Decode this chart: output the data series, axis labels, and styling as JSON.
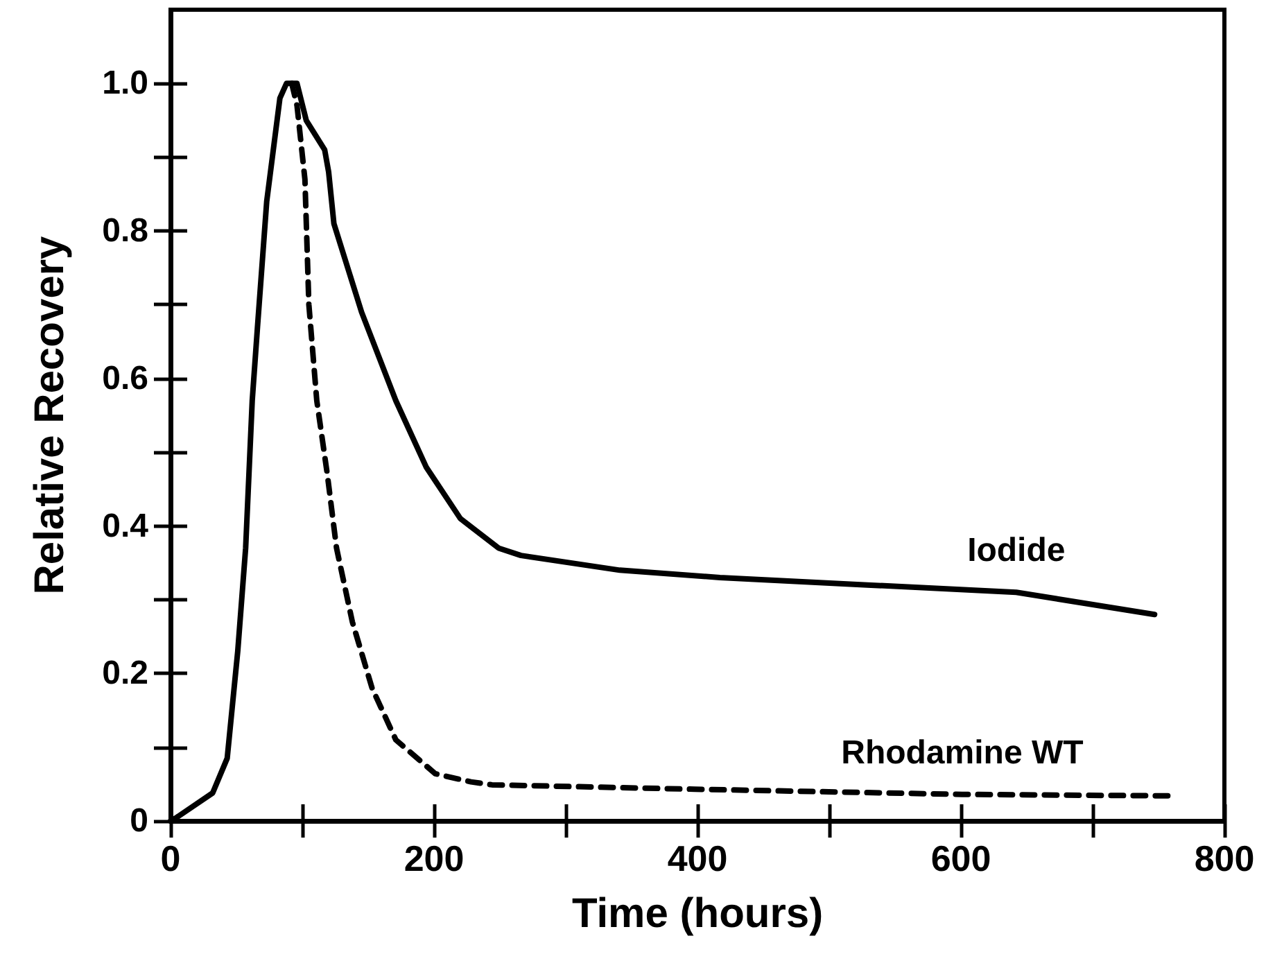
{
  "chart_data": {
    "type": "line",
    "xlabel": "Time (hours)",
    "ylabel": "Relative Recovery",
    "xlim": [
      0,
      800
    ],
    "ylim": [
      0,
      1.1
    ],
    "xticks": [
      0,
      {
        "value": 100,
        "label": null
      },
      200,
      {
        "value": 300,
        "label": null
      },
      400,
      {
        "value": 500,
        "label": null
      },
      600,
      {
        "value": 700,
        "label": null
      },
      800
    ],
    "yticks": [
      0,
      {
        "value": 0.1,
        "label": null
      },
      0.2,
      {
        "value": 0.3,
        "label": null
      },
      0.4,
      {
        "value": 0.5,
        "label": null
      },
      0.6,
      {
        "value": 0.7,
        "label": null
      },
      0.8,
      {
        "value": 0.9,
        "label": null
      },
      {
        "value": 1,
        "label": "1.0"
      }
    ],
    "grid": false,
    "legend": false,
    "marker": "none",
    "series": [
      {
        "name": "Iodide",
        "color": "#000000",
        "line_style": "solid",
        "x": [
          0,
          4,
          32,
          43,
          51,
          57,
          62,
          66,
          73,
          83,
          88,
          96,
          103,
          117,
          120,
          124,
          145,
          171,
          194,
          220,
          249,
          266,
          341,
          417,
          529,
          642,
          747
        ],
        "values": [
          0,
          0.004,
          0.038,
          0.085,
          0.23,
          0.37,
          0.57,
          0.67,
          0.84,
          0.98,
          1.0,
          1.0,
          0.95,
          0.91,
          0.88,
          0.81,
          0.69,
          0.57,
          0.48,
          0.41,
          0.37,
          0.36,
          0.34,
          0.33,
          0.32,
          0.31,
          0.28
        ]
      },
      {
        "name": "Rhodamine WT",
        "color": "#000000",
        "line_style": "dashed",
        "x": [
          92,
          96,
          102,
          105,
          111,
          119,
          126,
          138,
          153,
          171,
          201,
          228,
          244,
          398,
          601,
          759
        ],
        "values": [
          1.0,
          0.97,
          0.87,
          0.7,
          0.57,
          0.47,
          0.37,
          0.27,
          0.18,
          0.11,
          0.064,
          0.053,
          0.049,
          0.043,
          0.036,
          0.034
        ]
      }
    ]
  }
}
